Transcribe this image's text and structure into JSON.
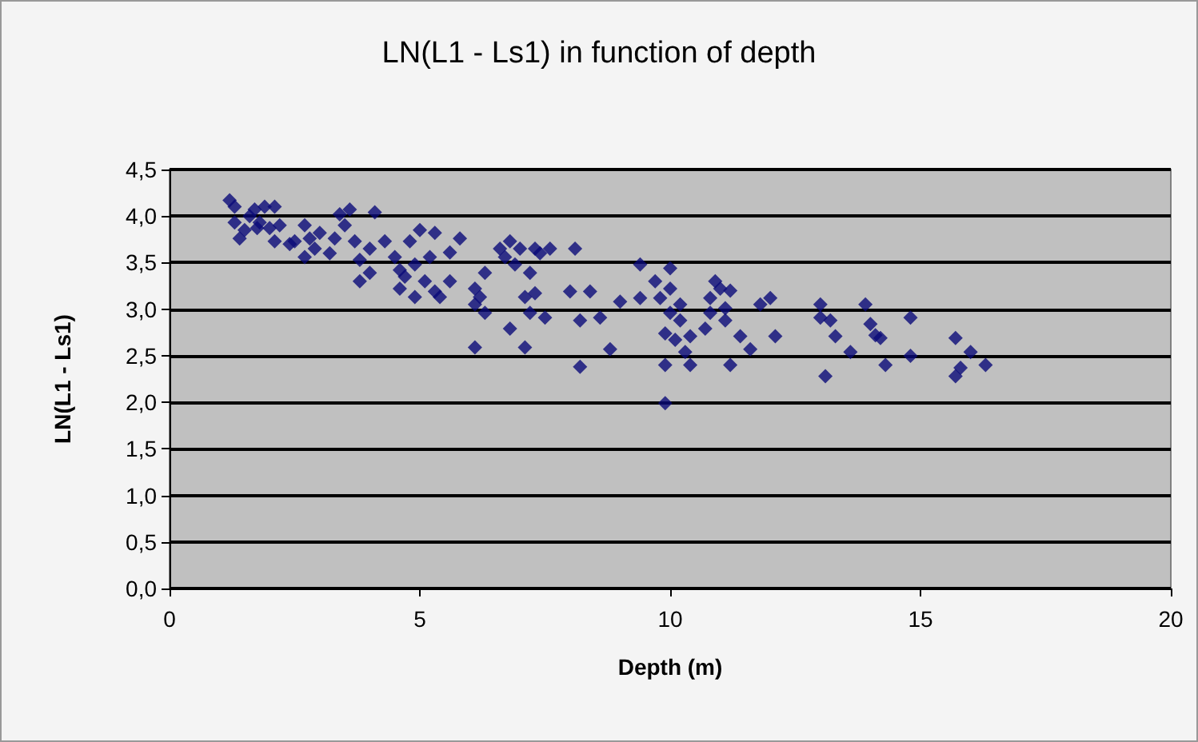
{
  "chart_data": {
    "type": "scatter",
    "title": "LN(L1 - Ls1) in function of depth",
    "xlabel": "Depth (m)",
    "ylabel": "LN(L1 - Ls1)",
    "x": [
      1.2,
      1.3,
      1.3,
      1.4,
      1.5,
      1.7,
      1.8,
      1.9,
      2.0,
      2.1,
      2.1,
      1.75,
      1.6,
      2.2,
      2.4,
      2.5,
      2.7,
      2.8,
      2.7,
      2.9,
      3.0,
      3.2,
      3.3,
      3.4,
      3.5,
      3.6,
      3.7,
      3.8,
      3.8,
      4.0,
      4.1,
      4.0,
      4.3,
      4.5,
      4.6,
      4.6,
      4.7,
      4.8,
      4.9,
      4.9,
      5.0,
      5.1,
      5.2,
      5.3,
      5.3,
      5.4,
      5.6,
      5.6,
      5.8,
      6.1,
      6.1,
      6.2,
      6.1,
      6.3,
      6.3,
      6.6,
      6.7,
      6.8,
      6.8,
      6.9,
      7.0,
      7.1,
      7.1,
      7.2,
      7.2,
      7.3,
      7.3,
      7.4,
      7.5,
      7.6,
      8.0,
      8.1,
      8.2,
      8.2,
      8.4,
      8.6,
      8.8,
      9.0,
      9.4,
      9.4,
      9.8,
      9.7,
      9.9,
      9.9,
      9.9,
      10.0,
      10.0,
      10.0,
      10.1,
      10.2,
      10.2,
      10.3,
      10.4,
      10.4,
      10.7,
      10.8,
      10.8,
      10.9,
      11.0,
      11.1,
      11.1,
      11.2,
      11.2,
      11.4,
      11.6,
      11.8,
      12.0,
      12.1,
      13.0,
      13.0,
      13.1,
      13.2,
      13.3,
      13.6,
      13.9,
      14.0,
      14.1,
      14.2,
      14.3,
      14.8,
      14.8,
      15.7,
      15.7,
      15.8,
      16.3,
      16.0
    ],
    "values": [
      4.17,
      4.1,
      3.93,
      3.76,
      3.85,
      4.07,
      3.93,
      4.1,
      3.87,
      4.1,
      3.73,
      3.87,
      4.0,
      3.9,
      3.7,
      3.73,
      3.9,
      3.76,
      3.56,
      3.65,
      3.82,
      3.6,
      3.76,
      4.02,
      3.9,
      4.07,
      3.73,
      3.53,
      3.3,
      3.39,
      4.04,
      3.65,
      3.73,
      3.56,
      3.42,
      3.22,
      3.35,
      3.73,
      3.48,
      3.13,
      3.85,
      3.3,
      3.56,
      3.19,
      3.82,
      3.13,
      3.3,
      3.61,
      3.76,
      3.05,
      3.22,
      3.13,
      2.59,
      3.39,
      2.96,
      3.65,
      3.56,
      3.73,
      2.79,
      3.48,
      3.65,
      3.13,
      2.59,
      3.39,
      2.96,
      3.65,
      3.17,
      3.6,
      2.91,
      3.65,
      3.19,
      3.65,
      2.88,
      2.38,
      3.19,
      2.91,
      2.57,
      3.08,
      3.12,
      3.48,
      3.12,
      3.3,
      2.74,
      2.4,
      1.99,
      3.44,
      3.22,
      2.96,
      2.67,
      2.88,
      3.05,
      2.54,
      2.71,
      2.4,
      2.79,
      2.96,
      3.12,
      3.3,
      3.22,
      2.88,
      3.01,
      2.4,
      3.2,
      2.71,
      2.57,
      3.05,
      3.12,
      2.71,
      3.05,
      2.91,
      2.28,
      2.88,
      2.71,
      2.54,
      3.05,
      2.84,
      2.72,
      2.69,
      2.4,
      2.91,
      2.5,
      2.69,
      2.28,
      2.37,
      2.4,
      2.54
    ],
    "color": "#0a0a78",
    "marker": "diamond",
    "grid": "y",
    "xlim": [
      0,
      20
    ],
    "xticks": [
      0,
      5,
      10,
      15,
      20
    ],
    "ylim": [
      0,
      4.5
    ],
    "yticks": [
      {
        "value": 0,
        "label": "0,0"
      },
      {
        "value": 0.5,
        "label": "0,5"
      },
      {
        "value": 1,
        "label": "1,0"
      },
      {
        "value": 1.5,
        "label": "1,5"
      },
      {
        "value": 2,
        "label": "2,0"
      },
      {
        "value": 2.5,
        "label": "2,5"
      },
      {
        "value": 3,
        "label": "3,0"
      },
      {
        "value": 3.5,
        "label": "3,5"
      },
      {
        "value": 4,
        "label": "4,0"
      },
      {
        "value": 4.5,
        "label": "4,5"
      }
    ]
  }
}
